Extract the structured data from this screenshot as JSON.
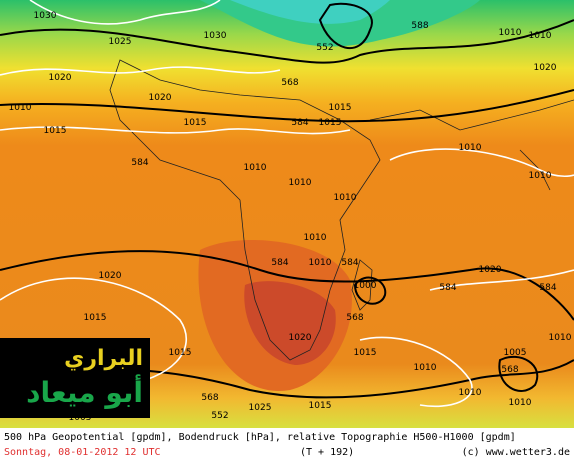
{
  "map": {
    "caption": {
      "line1": "500 hPa Geopotential [gpdm], Bodendruck [hPa], relative Topographie H500-H1000 [gpdm]",
      "date": "Sonntag, 08-01-2012  12 UTC",
      "forecast": "(T + 192)",
      "credit": "(c) www.wetter3.de"
    },
    "logo": {
      "line1": "البراري",
      "line2": "أبو ميعاد"
    },
    "contour_labels": [
      "1030",
      "1025",
      "1030",
      "1020",
      "1015",
      "1010",
      "1020",
      "552",
      "568",
      "588",
      "1010",
      "1015",
      "1020",
      "1015",
      "584",
      "1015",
      "584",
      "1010",
      "1010",
      "1010",
      "1010",
      "1010",
      "1010",
      "584",
      "1010",
      "584",
      "568",
      "1000",
      "584",
      "1015",
      "1020",
      "1015",
      "1020",
      "1015",
      "1010",
      "1005",
      "568",
      "1010",
      "568",
      "552",
      "1005",
      "1010",
      "1015",
      "1010",
      "584",
      "1010",
      "1020",
      "1025"
    ]
  }
}
